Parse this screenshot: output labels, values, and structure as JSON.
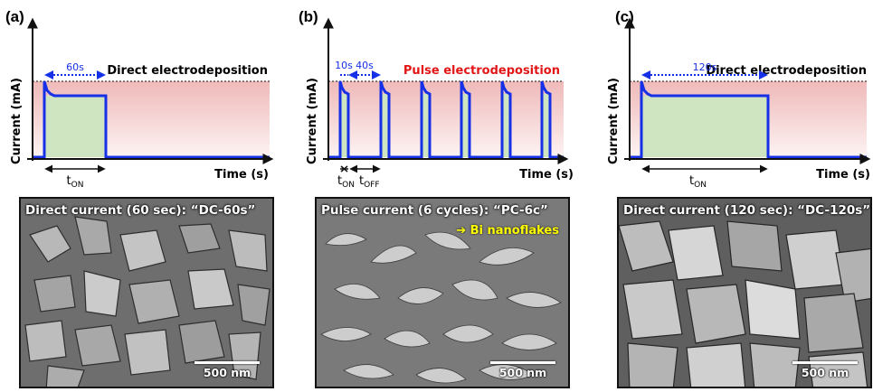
{
  "colors": {
    "trace": "#1530e6",
    "on_fill": "#cfe5c2",
    "bath_fill": "#f3cccc",
    "pulse_title": "#e21616",
    "interval": "#1530e6",
    "note": "#ffff00"
  },
  "panels": [
    {
      "letter": "(a)",
      "ylabel": "Current (mA)",
      "xlabel": "Time (s)",
      "mode_label": "Direct electrodeposition",
      "interval_labels": [
        "60s"
      ],
      "time_markers": [
        {
          "main": "t",
          "sub": "ON"
        }
      ],
      "sem": {
        "title": "Direct current (60 sec): “DC-60s”",
        "scale": "500 nm",
        "note": ""
      }
    },
    {
      "letter": "(b)",
      "ylabel": "Current (mA)",
      "xlabel": "Time (s)",
      "mode_label": "Pulse electrodeposition",
      "interval_labels": [
        "10s",
        "40s"
      ],
      "time_markers": [
        {
          "main": "t",
          "sub": "ON"
        },
        {
          "main": "t",
          "sub": "OFF"
        }
      ],
      "sem": {
        "title": "Pulse current (6 cycles): “PC-6c”",
        "scale": "500 nm",
        "note": "➔ Bi nanoflakes"
      }
    },
    {
      "letter": "(c)",
      "ylabel": "Current (mA)",
      "xlabel": "Time (s)",
      "mode_label": "Direct electrodeposition",
      "interval_labels": [
        "120s"
      ],
      "time_markers": [
        {
          "main": "t",
          "sub": "ON"
        }
      ],
      "sem": {
        "title": "Direct current (120 sec): “DC-120s”",
        "scale": "500 nm",
        "note": ""
      }
    }
  ]
}
